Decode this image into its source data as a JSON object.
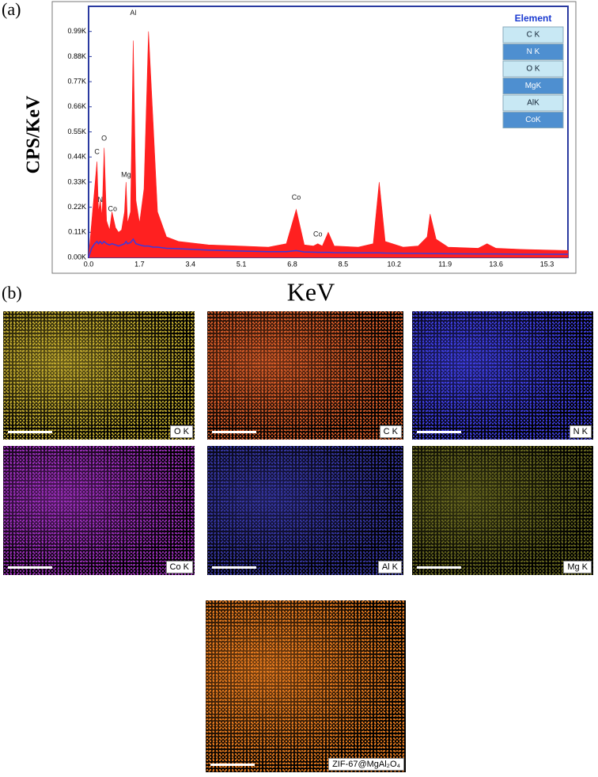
{
  "panel_a_label": "(a)",
  "panel_b_label": "(b)",
  "chart_data": {
    "type": "area",
    "y_label": "CPS/KeV",
    "x_label": "KeV",
    "x": [
      0.0,
      0.1,
      0.2,
      0.28,
      0.33,
      0.39,
      0.45,
      0.52,
      0.6,
      0.7,
      0.78,
      0.9,
      1.0,
      1.1,
      1.2,
      1.25,
      1.3,
      1.4,
      1.49,
      1.58,
      1.7,
      1.85,
      2.0,
      2.15,
      2.3,
      2.6,
      3.0,
      4.0,
      5.0,
      6.0,
      6.6,
      6.93,
      7.2,
      7.5,
      7.65,
      7.8,
      8.0,
      8.2,
      9.0,
      9.5,
      9.7,
      9.9,
      10.5,
      11.0,
      11.3,
      11.4,
      11.6,
      12.0,
      13.0,
      13.3,
      13.6,
      14.5,
      16.0
    ],
    "series": [
      {
        "color": "#ff2020",
        "fill": true,
        "values": [
          0,
          150,
          300,
          420,
          200,
          250,
          180,
          480,
          160,
          120,
          200,
          130,
          110,
          120,
          200,
          330,
          150,
          200,
          950,
          250,
          150,
          300,
          990,
          600,
          200,
          90,
          70,
          55,
          50,
          45,
          60,
          210,
          55,
          50,
          60,
          50,
          110,
          50,
          45,
          60,
          330,
          70,
          45,
          50,
          90,
          190,
          80,
          45,
          40,
          60,
          40,
          35,
          30
        ]
      },
      {
        "color": "#3a3adf",
        "fill": false,
        "values": [
          0,
          40,
          60,
          70,
          60,
          70,
          60,
          70,
          60,
          55,
          60,
          55,
          50,
          55,
          60,
          70,
          60,
          65,
          80,
          60,
          55,
          50,
          50,
          45,
          45,
          40,
          38,
          32,
          28,
          25,
          25,
          30,
          24,
          23,
          22,
          22,
          22,
          21,
          20,
          20,
          20,
          19,
          18,
          18,
          17,
          17,
          17,
          16,
          15,
          15,
          15,
          14,
          14
        ]
      }
    ],
    "xlim": [
      0,
      16
    ],
    "xticks": [
      {
        "value": 0,
        "label": "0.0"
      },
      1.7,
      3.4,
      5.1,
      6.8,
      8.5,
      10.2,
      11.9,
      13.6,
      15.3
    ],
    "ylim": [
      0,
      1100
    ],
    "yticks": [
      {
        "value": 0,
        "label": "0.00K"
      },
      {
        "value": 110,
        "label": "0.11K"
      },
      {
        "value": 220,
        "label": "0.22K"
      },
      {
        "value": 330,
        "label": "0.33K"
      },
      {
        "value": 440,
        "label": "0.44K"
      },
      {
        "value": 550,
        "label": "0.55K"
      },
      {
        "value": 660,
        "label": "0.66K"
      },
      {
        "value": 770,
        "label": "0.77K"
      },
      {
        "value": 880,
        "label": "0.88K"
      },
      {
        "value": 990,
        "label": "0.99K"
      }
    ],
    "peak_labels": [
      {
        "label": "C",
        "x": 0.28,
        "y": 440
      },
      {
        "label": "N",
        "x": 0.39,
        "y": 230
      },
      {
        "label": "O",
        "x": 0.52,
        "y": 500
      },
      {
        "label": "Co",
        "x": 0.8,
        "y": 190
      },
      {
        "label": "Mg",
        "x": 1.25,
        "y": 340
      },
      {
        "label": "Al",
        "x": 1.49,
        "y": 1050
      },
      {
        "label": "Co",
        "x": 6.93,
        "y": 240
      },
      {
        "label": "Co",
        "x": 7.65,
        "y": 80
      }
    ],
    "element_table": {
      "title": "Element",
      "items": [
        "C K",
        "N K",
        "O K",
        "MgK",
        "AlK",
        "CoK"
      ]
    }
  },
  "maps": [
    {
      "label": "O K",
      "color": "#c8b030"
    },
    {
      "label": "C K",
      "color": "#e0602a"
    },
    {
      "label": "N K",
      "color": "#4040e8"
    },
    {
      "label": "Co K",
      "color": "#a030c0"
    },
    {
      "label": "Al K",
      "color": "#3838a8"
    },
    {
      "label": "Mg K",
      "color": "#6a6a20"
    },
    {
      "label": "ZIF-67@MgAl₂O₄",
      "color": "#f08020"
    }
  ]
}
